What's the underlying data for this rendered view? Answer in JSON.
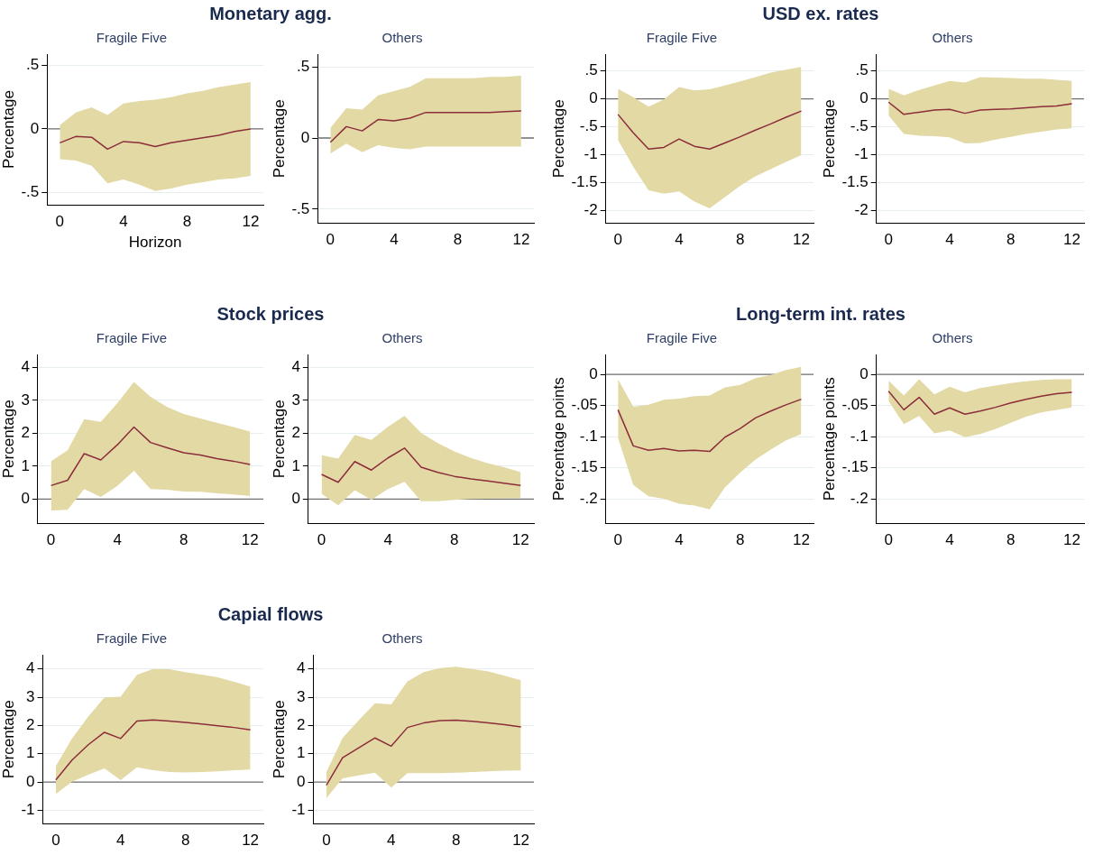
{
  "chart_data": [
    {
      "type": "line",
      "title": "Monetary agg.",
      "subtitle": "Fragile Five",
      "xlabel": "Horizon",
      "ylabel": "Percentage",
      "x": [
        0,
        1,
        2,
        3,
        4,
        5,
        6,
        7,
        8,
        9,
        10,
        11,
        12
      ],
      "xlim": [
        -0.8,
        12.8
      ],
      "xticks": [
        0,
        4,
        8,
        12
      ],
      "ylim": [
        -0.6,
        0.59
      ],
      "yticks": [
        {
          "value": -0.5,
          "label": "-.5"
        },
        0,
        {
          "value": 0.5,
          "label": ".5"
        }
      ],
      "grid": "y",
      "ref_lines": [
        {
          "axis": "y",
          "value": 0,
          "color": "#707070"
        }
      ],
      "series": [
        {
          "color": "#8c2d3c",
          "values": [
            -0.11,
            -0.06,
            -0.066,
            -0.16,
            -0.1,
            -0.11,
            -0.14,
            -0.11,
            -0.09,
            -0.07,
            -0.05,
            -0.02,
            0
          ],
          "lower": [
            -0.24,
            -0.25,
            -0.29,
            -0.43,
            -0.4,
            -0.44,
            -0.49,
            -0.47,
            -0.44,
            -0.42,
            -0.4,
            -0.39,
            -0.37
          ],
          "upper": [
            0.03,
            0.13,
            0.17,
            0.11,
            0.2,
            0.22,
            0.23,
            0.25,
            0.28,
            0.3,
            0.33,
            0.35,
            0.37
          ]
        }
      ]
    },
    {
      "type": "line",
      "subtitle": "Others",
      "ylabel": "Percentage",
      "x": [
        0,
        1,
        2,
        3,
        4,
        5,
        6,
        7,
        8,
        9,
        10,
        11,
        12
      ],
      "xlim": [
        -0.8,
        12.8
      ],
      "xticks": [
        0,
        4,
        8,
        12
      ],
      "ylim": [
        -0.6,
        0.59
      ],
      "yticks": [
        {
          "value": -0.5,
          "label": "-.5"
        },
        0,
        {
          "value": 0.5,
          "label": ".5"
        }
      ],
      "grid": "y",
      "ref_lines": [
        {
          "axis": "y",
          "value": 0,
          "color": "#707070"
        }
      ],
      "series": [
        {
          "color": "#8c2d3c",
          "values": [
            -0.03,
            0.08,
            0.05,
            0.13,
            0.12,
            0.14,
            0.18,
            0.18,
            0.18,
            0.18,
            0.18,
            0.185,
            0.19
          ],
          "lower": [
            -0.11,
            -0.04,
            -0.1,
            -0.05,
            -0.07,
            -0.08,
            -0.06,
            -0.06,
            -0.06,
            -0.06,
            -0.06,
            -0.06,
            -0.06
          ],
          "upper": [
            0.07,
            0.21,
            0.2,
            0.3,
            0.33,
            0.36,
            0.42,
            0.42,
            0.42,
            0.42,
            0.43,
            0.43,
            0.44
          ]
        }
      ]
    },
    {
      "type": "line",
      "title": "USD ex. rates",
      "subtitle": "Fragile Five",
      "ylabel": "Percentage",
      "x": [
        0,
        1,
        2,
        3,
        4,
        5,
        6,
        7,
        8,
        9,
        10,
        11,
        12
      ],
      "xlim": [
        -0.8,
        12.8
      ],
      "xticks": [
        0,
        4,
        8,
        12
      ],
      "ylim": [
        -2.23,
        0.8
      ],
      "yticks": [
        -2,
        -1.5,
        -1,
        {
          "value": -0.5,
          "label": "-.5"
        },
        0,
        {
          "value": 0.5,
          "label": ".5"
        }
      ],
      "grid": "y",
      "ref_lines": [
        {
          "axis": "y",
          "value": 0,
          "color": "#707070"
        }
      ],
      "series": [
        {
          "color": "#8c2d3c",
          "values": [
            -0.28,
            -0.61,
            -0.9,
            -0.87,
            -0.72,
            -0.85,
            -0.9,
            -0.79,
            -0.68,
            -0.56,
            -0.45,
            -0.33,
            -0.22
          ],
          "lower": [
            -0.74,
            -1.22,
            -1.64,
            -1.7,
            -1.66,
            -1.84,
            -1.96,
            -1.76,
            -1.56,
            -1.39,
            -1.26,
            -1.13,
            -1.01
          ],
          "upper": [
            0.18,
            0.03,
            -0.14,
            -0.01,
            0.21,
            0.15,
            0.17,
            0.24,
            0.31,
            0.39,
            0.47,
            0.52,
            0.57
          ]
        }
      ]
    },
    {
      "type": "line",
      "subtitle": "Others",
      "ylabel": "Percentage",
      "x": [
        0,
        1,
        2,
        3,
        4,
        5,
        6,
        7,
        8,
        9,
        10,
        11,
        12
      ],
      "xlim": [
        -0.8,
        12.8
      ],
      "xticks": [
        0,
        4,
        8,
        12
      ],
      "ylim": [
        -2.23,
        0.8
      ],
      "yticks": [
        -2,
        -1.5,
        -1,
        {
          "value": -0.5,
          "label": "-.5"
        },
        0,
        {
          "value": 0.5,
          "label": ".5"
        }
      ],
      "grid": "y",
      "ref_lines": [
        {
          "axis": "y",
          "value": 0,
          "color": "#707070"
        }
      ],
      "series": [
        {
          "color": "#8c2d3c",
          "values": [
            -0.06,
            -0.28,
            -0.24,
            -0.2,
            -0.19,
            -0.26,
            -0.2,
            -0.19,
            -0.18,
            -0.16,
            -0.14,
            -0.13,
            -0.09
          ],
          "lower": [
            -0.3,
            -0.63,
            -0.66,
            -0.67,
            -0.69,
            -0.8,
            -0.79,
            -0.73,
            -0.68,
            -0.63,
            -0.59,
            -0.55,
            -0.53
          ],
          "upper": [
            0.18,
            0.06,
            0.16,
            0.24,
            0.32,
            0.29,
            0.39,
            0.38,
            0.37,
            0.36,
            0.36,
            0.34,
            0.32
          ]
        }
      ]
    },
    {
      "type": "line",
      "title": "Stock prices",
      "subtitle": "Fragile Five",
      "ylabel": "Percentage",
      "x": [
        0,
        1,
        2,
        3,
        4,
        5,
        6,
        7,
        8,
        9,
        10,
        11,
        12
      ],
      "xlim": [
        -0.8,
        12.8
      ],
      "xticks": [
        0,
        4,
        8,
        12
      ],
      "ylim": [
        -0.75,
        4.4
      ],
      "yticks": [
        0,
        1,
        2,
        3,
        4
      ],
      "grid": "y",
      "ref_lines": [
        {
          "axis": "y",
          "value": 0,
          "color": "#707070"
        }
      ],
      "series": [
        {
          "color": "#8c2d3c",
          "values": [
            0.41,
            0.57,
            1.38,
            1.19,
            1.65,
            2.19,
            1.72,
            1.56,
            1.41,
            1.34,
            1.23,
            1.15,
            1.05
          ],
          "lower": [
            -0.35,
            -0.33,
            0.3,
            0.06,
            0.4,
            0.86,
            0.3,
            0.28,
            0.23,
            0.22,
            0.17,
            0.14,
            0.09
          ],
          "upper": [
            1.15,
            1.48,
            2.43,
            2.35,
            2.92,
            3.56,
            3.11,
            2.8,
            2.59,
            2.45,
            2.32,
            2.19,
            2.05
          ]
        }
      ]
    },
    {
      "type": "line",
      "subtitle": "Others",
      "ylabel": "Percentage",
      "x": [
        0,
        1,
        2,
        3,
        4,
        5,
        6,
        7,
        8,
        9,
        10,
        11,
        12
      ],
      "xlim": [
        -0.8,
        12.8
      ],
      "xticks": [
        0,
        4,
        8,
        12
      ],
      "ylim": [
        -0.75,
        4.4
      ],
      "yticks": [
        0,
        1,
        2,
        3,
        4
      ],
      "grid": "y",
      "ref_lines": [
        {
          "axis": "y",
          "value": 0,
          "color": "#707070"
        }
      ],
      "series": [
        {
          "color": "#8c2d3c",
          "values": [
            0.75,
            0.51,
            1.14,
            0.88,
            1.25,
            1.55,
            0.97,
            0.81,
            0.69,
            0.61,
            0.55,
            0.48,
            0.41
          ],
          "lower": [
            0.16,
            -0.19,
            0.27,
            -0.03,
            0.3,
            0.52,
            -0.07,
            -0.07,
            -0.03,
            0,
            0.01,
            0.02,
            0.03
          ],
          "upper": [
            1.33,
            1.23,
            1.95,
            1.8,
            2.2,
            2.53,
            2.01,
            1.7,
            1.45,
            1.25,
            1.09,
            0.97,
            0.82
          ]
        }
      ]
    },
    {
      "type": "line",
      "title": "Long-term int. rates",
      "subtitle": "Fragile Five",
      "ylabel": "Percentage points",
      "x": [
        0,
        1,
        2,
        3,
        4,
        5,
        6,
        7,
        8,
        9,
        10,
        11,
        12
      ],
      "xlim": [
        -0.8,
        12.8
      ],
      "xticks": [
        0,
        4,
        8,
        12
      ],
      "ylim": [
        -0.24,
        0.032
      ],
      "yticks": [
        {
          "value": -0.2,
          "label": "-.2"
        },
        {
          "value": -0.15,
          "label": "-.15"
        },
        {
          "value": -0.1,
          "label": "-.1"
        },
        {
          "value": -0.05,
          "label": "-.05"
        },
        0
      ],
      "grid": "y",
      "ref_lines": [
        {
          "axis": "y",
          "value": 0,
          "color": "#707070"
        }
      ],
      "series": [
        {
          "color": "#8c2d3c",
          "values": [
            -0.057,
            -0.115,
            -0.122,
            -0.119,
            -0.123,
            -0.122,
            -0.124,
            -0.101,
            -0.087,
            -0.07,
            -0.059,
            -0.049,
            -0.04
          ],
          "lower": [
            -0.102,
            -0.178,
            -0.196,
            -0.2,
            -0.208,
            -0.211,
            -0.217,
            -0.182,
            -0.158,
            -0.137,
            -0.121,
            -0.106,
            -0.096
          ],
          "upper": [
            -0.008,
            -0.052,
            -0.049,
            -0.041,
            -0.039,
            -0.035,
            -0.034,
            -0.021,
            -0.017,
            -0.006,
            -0.001,
            0.007,
            0.012
          ]
        }
      ]
    },
    {
      "type": "line",
      "subtitle": "Others",
      "ylabel": "Percentage points",
      "x": [
        0,
        1,
        2,
        3,
        4,
        5,
        6,
        7,
        8,
        9,
        10,
        11,
        12
      ],
      "xlim": [
        -0.8,
        12.8
      ],
      "xticks": [
        0,
        4,
        8,
        12
      ],
      "ylim": [
        -0.24,
        0.032
      ],
      "yticks": [
        {
          "value": -0.2,
          "label": "-.2"
        },
        {
          "value": -0.15,
          "label": "-.15"
        },
        {
          "value": -0.1,
          "label": "-.1"
        },
        {
          "value": -0.05,
          "label": "-.05"
        },
        0
      ],
      "grid": "y",
      "ref_lines": [
        {
          "axis": "y",
          "value": 0,
          "color": "#707070"
        }
      ],
      "series": [
        {
          "color": "#8c2d3c",
          "values": [
            -0.027,
            -0.057,
            -0.037,
            -0.064,
            -0.054,
            -0.064,
            -0.059,
            -0.053,
            -0.046,
            -0.04,
            -0.035,
            -0.031,
            -0.029
          ],
          "lower": [
            -0.043,
            -0.08,
            -0.067,
            -0.095,
            -0.09,
            -0.101,
            -0.096,
            -0.088,
            -0.078,
            -0.068,
            -0.061,
            -0.057,
            -0.053
          ],
          "upper": [
            -0.01,
            -0.034,
            -0.008,
            -0.032,
            -0.02,
            -0.029,
            -0.022,
            -0.018,
            -0.014,
            -0.011,
            -0.009,
            -0.008,
            -0.008
          ]
        }
      ]
    },
    {
      "type": "line",
      "title": "Capial flows",
      "subtitle": "Fragile Five",
      "ylabel": "Percentage",
      "x": [
        0,
        1,
        2,
        3,
        4,
        5,
        6,
        7,
        8,
        9,
        10,
        11,
        12
      ],
      "xlim": [
        -0.8,
        12.8
      ],
      "xticks": [
        0,
        4,
        8,
        12
      ],
      "ylim": [
        -1.48,
        4.5
      ],
      "yticks": [
        -1,
        0,
        1,
        2,
        3,
        4
      ],
      "grid": "y",
      "ref_lines": [
        {
          "axis": "y",
          "value": 0,
          "color": "#707070"
        }
      ],
      "series": [
        {
          "color": "#8c2d3c",
          "values": [
            0.08,
            0.78,
            1.32,
            1.76,
            1.54,
            2.16,
            2.2,
            2.16,
            2.11,
            2.05,
            1.99,
            1.93,
            1.85
          ],
          "lower": [
            -0.42,
            0.01,
            0.26,
            0.48,
            0.07,
            0.52,
            0.42,
            0.36,
            0.34,
            0.36,
            0.38,
            0.42,
            0.44
          ],
          "upper": [
            0.56,
            1.54,
            2.32,
            2.99,
            3.02,
            3.79,
            4,
            3.99,
            3.89,
            3.8,
            3.7,
            3.54,
            3.38
          ]
        }
      ]
    },
    {
      "type": "line",
      "subtitle": "Others",
      "ylabel": "Percentage",
      "x": [
        0,
        1,
        2,
        3,
        4,
        5,
        6,
        7,
        8,
        9,
        10,
        11,
        12
      ],
      "xlim": [
        -0.8,
        12.8
      ],
      "xticks": [
        0,
        4,
        8,
        12
      ],
      "ylim": [
        -1.48,
        4.5
      ],
      "yticks": [
        -1,
        0,
        1,
        2,
        3,
        4
      ],
      "grid": "y",
      "ref_lines": [
        {
          "axis": "y",
          "value": 0,
          "color": "#707070"
        }
      ],
      "series": [
        {
          "color": "#8c2d3c",
          "values": [
            -0.11,
            0.86,
            1.21,
            1.56,
            1.27,
            1.93,
            2.09,
            2.17,
            2.19,
            2.15,
            2.09,
            2.03,
            1.95
          ],
          "lower": [
            -0.57,
            0.13,
            0.24,
            0.33,
            -0.19,
            0.32,
            0.32,
            0.32,
            0.33,
            0.36,
            0.38,
            0.4,
            0.41
          ],
          "upper": [
            0.36,
            1.56,
            2.19,
            2.79,
            2.75,
            3.56,
            3.89,
            4.03,
            4.08,
            4,
            3.91,
            3.76,
            3.6
          ]
        }
      ]
    }
  ]
}
